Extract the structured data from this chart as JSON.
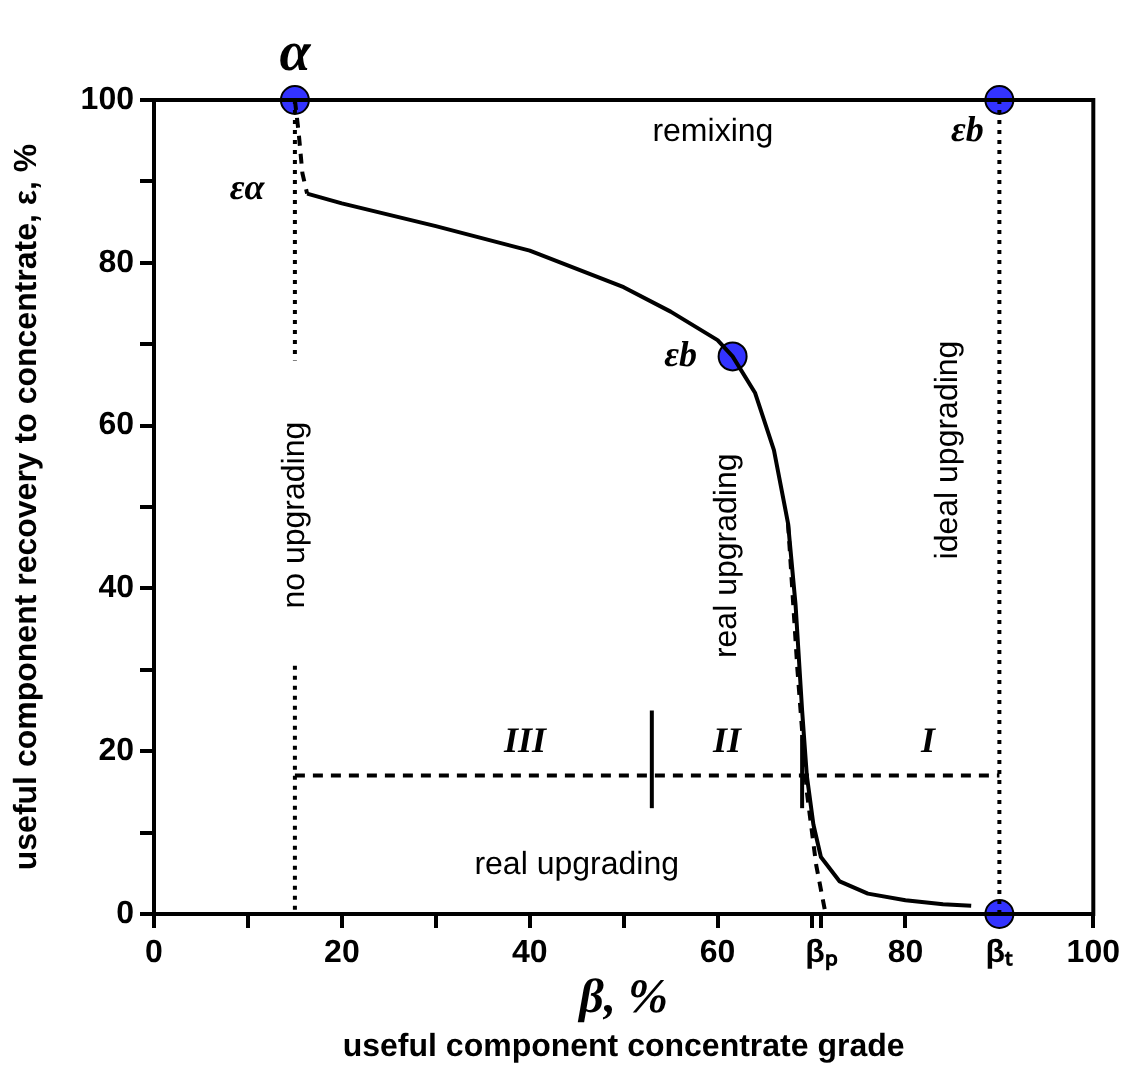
{
  "chart_data": {
    "type": "line",
    "xlabel": "useful component concentrate grade",
    "ylabel": "useful component recovery to concentrate, ε, %",
    "xlim": [
      0,
      100
    ],
    "xticks": [
      0,
      {
        "value": 10,
        "label": null
      },
      20,
      {
        "value": 30,
        "label": null
      },
      40,
      {
        "value": 50,
        "label": null
      },
      60,
      {
        "value": 70,
        "label": null
      },
      80,
      {
        "value": 71,
        "label": "βₚ"
      },
      {
        "value": 90,
        "label": "βₜ"
      },
      100
    ],
    "ylim": [
      0,
      100
    ],
    "yticks": [
      0,
      {
        "value": 10,
        "label": null
      },
      20,
      {
        "value": 30,
        "label": null
      },
      40,
      {
        "value": 50,
        "label": null
      },
      60,
      {
        "value": 70,
        "label": null
      },
      80,
      {
        "value": 90,
        "label": null
      },
      100
    ],
    "grid": false,
    "legend": false,
    "series": [
      {
        "color": "#000000",
        "line_style": "solid",
        "marker": "none",
        "x": [
          16.3,
          20,
          30,
          40,
          50,
          55,
          60,
          61.6,
          64,
          66,
          67.5,
          68.3,
          69,
          69.5,
          70.2,
          71,
          73,
          76,
          80,
          84,
          87
        ],
        "values": [
          88.5,
          87.3,
          84.5,
          81.5,
          77,
          74,
          70.5,
          68.5,
          64,
          57,
          48,
          38,
          25,
          17,
          11,
          7,
          4,
          2.5,
          1.7,
          1.2,
          1
        ]
      },
      {
        "type": "line",
        "color": "#000000",
        "line_style": "dashed",
        "marker": "none",
        "x": [
          15,
          15.4,
          15.8,
          16.3
        ],
        "values": [
          100,
          96,
          91,
          88.5
        ]
      },
      {
        "type": "line",
        "color": "#000000",
        "line_style": "dashed",
        "marker": "none",
        "x": [
          67.5,
          68.5,
          69.5,
          70.5,
          71.5
        ],
        "values": [
          48,
          30,
          15,
          6,
          0
        ]
      },
      {
        "type": "line",
        "color": "#000000",
        "line_style": "dotted",
        "marker": "none",
        "x": [
          15,
          15
        ],
        "values": [
          100,
          68
        ]
      },
      {
        "type": "line",
        "color": "#000000",
        "line_style": "dotted",
        "marker": "none",
        "x": [
          15,
          15
        ],
        "values": [
          30.5,
          0
        ]
      },
      {
        "type": "line",
        "color": "#000000",
        "line_style": "dotted",
        "marker": "none",
        "x": [
          90,
          90
        ],
        "values": [
          100,
          0
        ]
      },
      {
        "type": "line",
        "color": "#000000",
        "line_style": "dashed",
        "marker": "none",
        "x": [
          15,
          90
        ],
        "values": [
          17,
          17
        ]
      },
      {
        "type": "line",
        "color": "#000000",
        "line_style": "solid",
        "marker": "none",
        "x": [
          53,
          53
        ],
        "values": [
          13,
          25
        ]
      },
      {
        "type": "line",
        "color": "#000000",
        "line_style": "solid",
        "marker": "none",
        "x": [
          69,
          69
        ],
        "values": [
          13,
          22
        ]
      },
      {
        "type": "scatter",
        "color": "#3333ff",
        "marker": "circle",
        "x": [
          15,
          61.6,
          90,
          90
        ],
        "values": [
          100,
          68.5,
          100,
          0
        ]
      }
    ],
    "annotations": [
      "remixing",
      "no upgrading",
      "real upgrading",
      "ideal upgrading",
      "real upgrading",
      "III",
      "II",
      "I",
      {
        "text": "α",
        "x": 15,
        "y": 100
      },
      {
        "text": "εα",
        "x": 16.3,
        "y": 88.5
      },
      {
        "text": "εb",
        "x": 61.6,
        "y": 68.5
      },
      {
        "text": "εb",
        "x": 90,
        "y": 100
      },
      "β, %"
    ]
  }
}
